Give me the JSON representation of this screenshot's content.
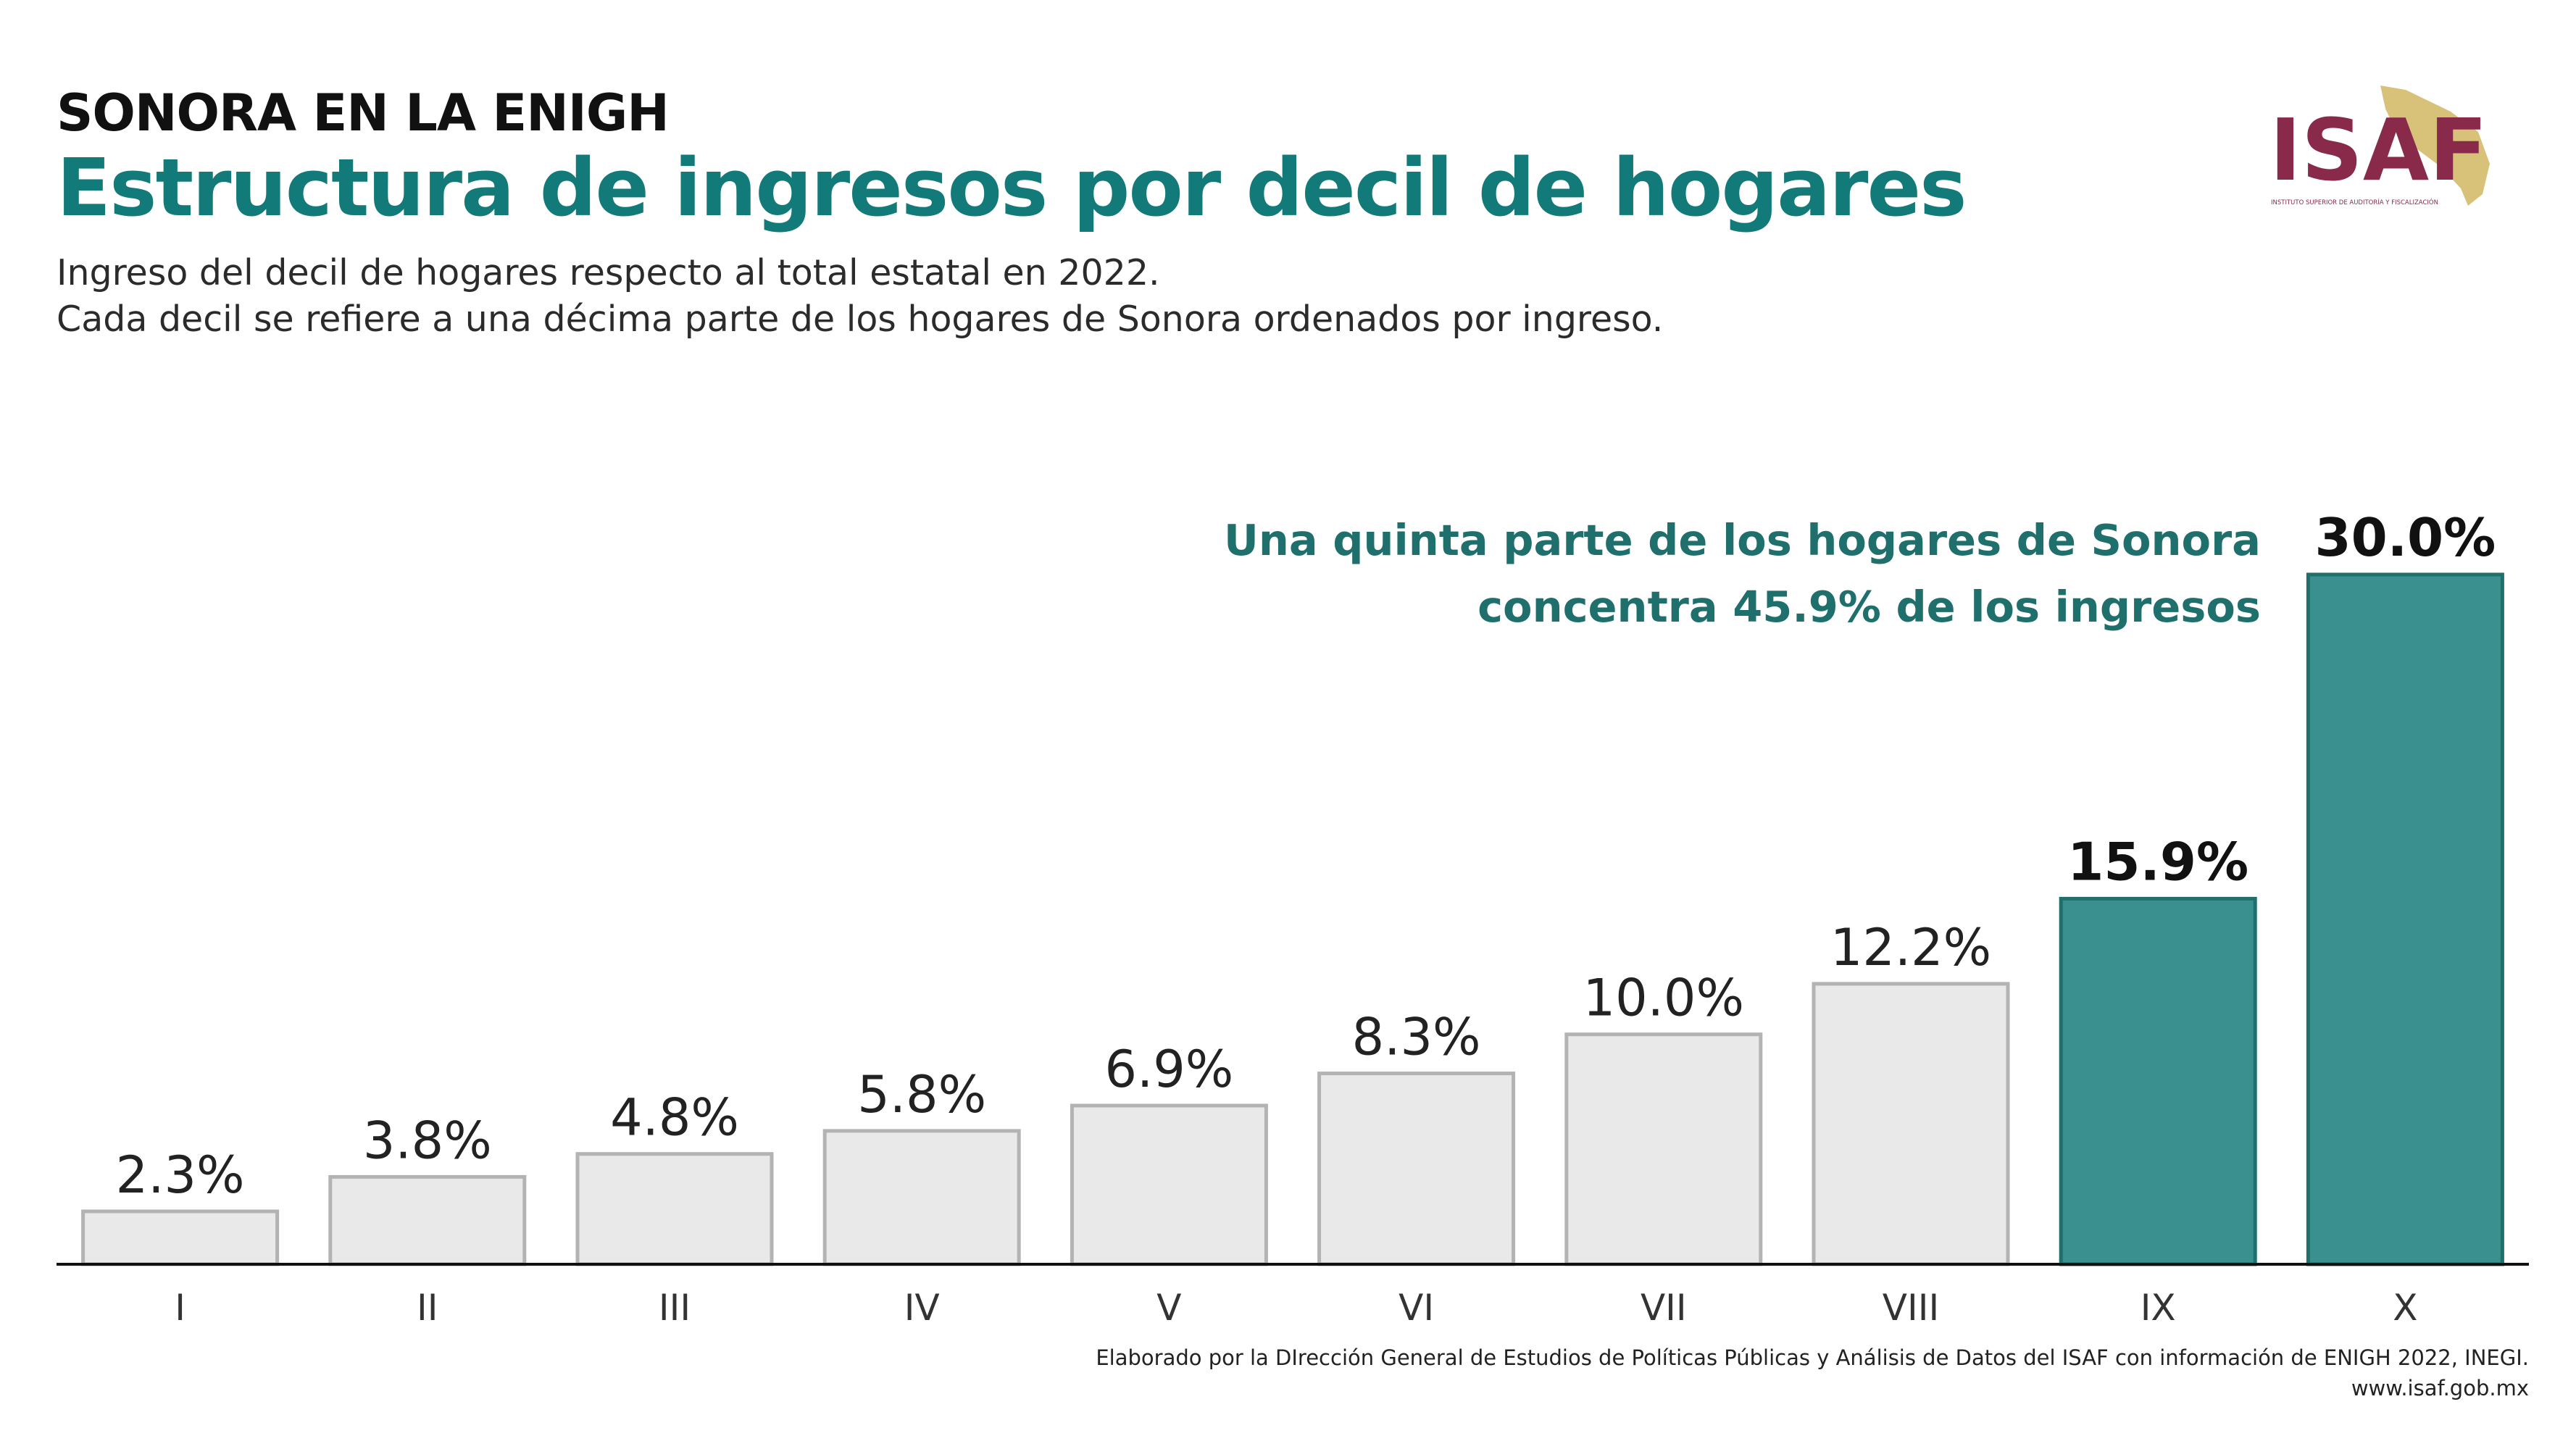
{
  "header": {
    "kicker": "SONORA EN LA ENIGH",
    "title": "Estructura de ingresos por decil de hogares",
    "subtitle_line1": "Ingreso del decil de hogares respecto al total estatal en 2022.",
    "subtitle_line2": "Cada decil se refiere a una décima parte de los hogares de Sonora ordenados por ingreso."
  },
  "logo": {
    "text": "ISAF",
    "tagline": "INSTITUTO SUPERIOR DE AUDITORÍA Y FISCALIZACIÓN",
    "icon": "sonora-map-icon"
  },
  "annotation": {
    "line1": "Una quinta parte de los hogares de Sonora",
    "line2": "concentra 45.9% de los ingresos"
  },
  "footer": {
    "source": "Elaborado por la DIrección General de Estudios de Políticas Públicas y Análisis de Datos del ISAF con información de ENIGH 2022, INEGI.",
    "website": "www.isaf.gob.mx"
  },
  "colors": {
    "accent": "#3a8f8f",
    "accent_dark": "#1f6f6c",
    "title": "#127a78",
    "bar_default": "#e9e9e9",
    "bar_default_border": "#b3b3b3",
    "logo_primary": "#8a2a4a",
    "logo_secondary": "#d8c27a"
  },
  "chart_data": {
    "type": "bar",
    "title": "Estructura de ingresos por decil de hogares",
    "xlabel": "",
    "ylabel": "",
    "categories": [
      "I",
      "II",
      "III",
      "IV",
      "V",
      "VI",
      "VII",
      "VIII",
      "IX",
      "X"
    ],
    "values": [
      2.3,
      3.8,
      4.8,
      5.8,
      6.9,
      8.3,
      10.0,
      12.2,
      15.9,
      30.0
    ],
    "value_labels": [
      "2.3%",
      "3.8%",
      "4.8%",
      "5.8%",
      "6.9%",
      "8.3%",
      "10.0%",
      "12.2%",
      "15.9%",
      "30.0%"
    ],
    "highlighted": [
      "IX",
      "X"
    ],
    "ylim": [
      0,
      30
    ],
    "grid": false,
    "legend": "none"
  }
}
